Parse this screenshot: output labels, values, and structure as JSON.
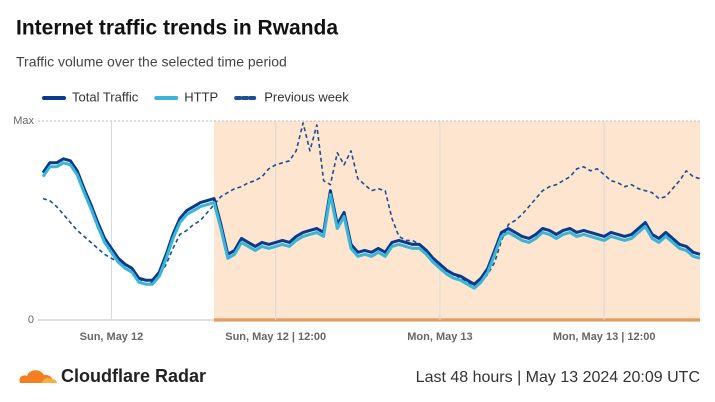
{
  "chart_data": {
    "type": "line",
    "title": "Internet traffic trends in Rwanda",
    "subtitle": "Traffic volume over the selected time period",
    "brand": "Cloudflare Radar",
    "footer": "Last 48 hours | May 13 2024 20:09 UTC",
    "categories": [
      null,
      null,
      null,
      null,
      null,
      null,
      null,
      null,
      null,
      null,
      "Sun, May 12",
      null,
      null,
      null,
      null,
      null,
      null,
      null,
      null,
      null,
      null,
      null,
      null,
      null,
      null,
      null,
      null,
      null,
      null,
      null,
      null,
      null,
      null,
      null,
      "Sun, May 12 | 12:00",
      null,
      null,
      null,
      null,
      null,
      null,
      null,
      null,
      null,
      null,
      null,
      null,
      null,
      null,
      null,
      null,
      null,
      null,
      null,
      null,
      null,
      null,
      null,
      "Mon, May 13",
      null,
      null,
      null,
      null,
      null,
      null,
      null,
      null,
      null,
      null,
      null,
      null,
      null,
      null,
      null,
      null,
      null,
      null,
      null,
      null,
      null,
      null,
      null,
      "Mon, May 13 | 12:00",
      null,
      null,
      null,
      null,
      null,
      null,
      null,
      null,
      null,
      null,
      null,
      null,
      null,
      null
    ],
    "ylim": [
      0,
      100
    ],
    "yticks": [
      0,
      {
        "value": 100,
        "label": "Max"
      }
    ],
    "series": [
      {
        "name": "Total Traffic",
        "color": "#0a3a8c",
        "dashed": false,
        "values": [
          74,
          79,
          79,
          81,
          80,
          75,
          66,
          58,
          49,
          41,
          36,
          31,
          28,
          26,
          21,
          20,
          20,
          24,
          33,
          43,
          51,
          55,
          57,
          59,
          60,
          61,
          48,
          33,
          35,
          41,
          39,
          37,
          39,
          38,
          39,
          40,
          39,
          42,
          44,
          45,
          46,
          44,
          65,
          48,
          54,
          38,
          34,
          35,
          34,
          36,
          34,
          39,
          40,
          39,
          38,
          38,
          35,
          31,
          28,
          25,
          23,
          22,
          20,
          18,
          21,
          26,
          35,
          44,
          46,
          44,
          42,
          41,
          43,
          46,
          45,
          43,
          45,
          46,
          44,
          45,
          44,
          43,
          42,
          44,
          43,
          42,
          43,
          46,
          49,
          43,
          41,
          44,
          41,
          38,
          37,
          34,
          33
        ]
      },
      {
        "name": "HTTP",
        "color": "#3bb5d6",
        "dashed": false,
        "values": [
          72,
          77,
          77,
          79,
          78,
          73,
          64,
          56,
          47,
          39,
          34,
          29,
          26,
          24,
          19,
          18,
          18,
          22,
          31,
          41,
          49,
          53,
          55,
          57,
          58,
          59,
          46,
          31,
          33,
          39,
          37,
          35,
          37,
          36,
          37,
          38,
          37,
          40,
          42,
          43,
          44,
          42,
          63,
          46,
          52,
          36,
          32,
          33,
          32,
          34,
          32,
          37,
          38,
          37,
          36,
          36,
          33,
          29,
          26,
          23,
          21,
          20,
          18,
          16,
          19,
          24,
          33,
          42,
          44,
          42,
          40,
          39,
          41,
          44,
          43,
          41,
          43,
          44,
          42,
          43,
          42,
          41,
          40,
          42,
          41,
          40,
          41,
          44,
          47,
          41,
          39,
          42,
          39,
          36,
          35,
          32,
          31
        ]
      },
      {
        "name": "Previous week",
        "color": "#1d4f91",
        "dashed": true,
        "values": [
          61,
          60,
          57,
          53,
          49,
          45,
          42,
          39,
          36,
          33,
          31,
          29,
          26,
          24,
          21,
          18,
          19,
          22,
          28,
          36,
          43,
          45,
          48,
          50,
          54,
          58,
          62,
          64,
          66,
          67,
          69,
          70,
          72,
          76,
          78,
          79,
          80,
          85,
          99,
          85,
          98,
          70,
          68,
          84,
          78,
          85,
          71,
          68,
          65,
          66,
          65,
          51,
          42,
          40,
          40,
          38,
          34,
          31,
          28,
          25,
          23,
          21,
          19,
          17,
          19,
          23,
          29,
          40,
          48,
          50,
          53,
          57,
          61,
          65,
          67,
          68,
          70,
          72,
          76,
          77,
          75,
          76,
          73,
          70,
          69,
          67,
          68,
          66,
          65,
          64,
          61,
          62,
          66,
          70,
          75,
          72,
          71
        ]
      }
    ]
  }
}
